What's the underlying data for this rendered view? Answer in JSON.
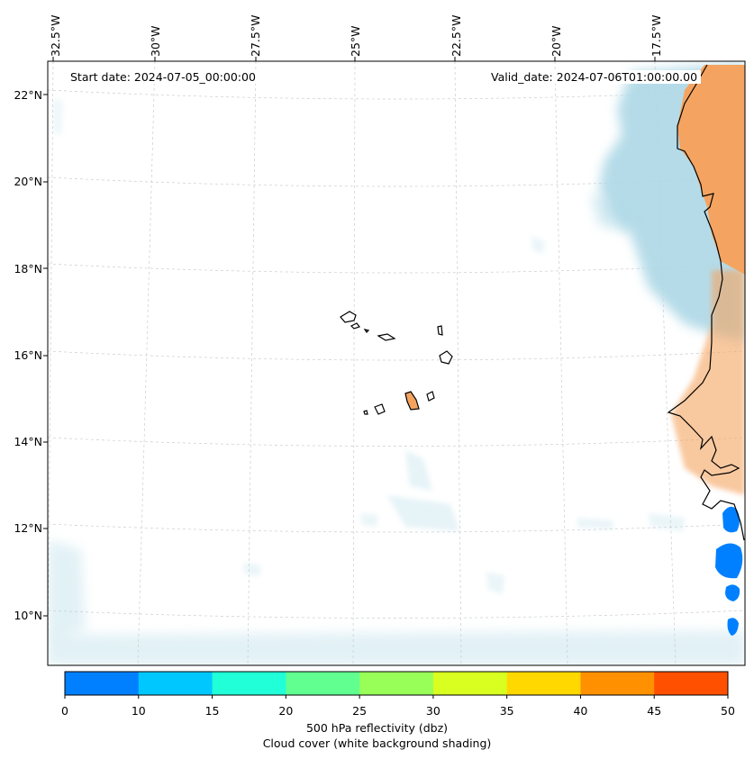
{
  "map": {
    "start_date": "Start date: 2024-07-05_00:00:00",
    "valid_date": "Valid_date: 2024-07-06T01:00:00.00",
    "lon_labels": [
      "32.5°W",
      "30°W",
      "27.5°W",
      "25°W",
      "22.5°W",
      "20°W",
      "17.5°W"
    ],
    "lat_labels": [
      "22°N",
      "20°N",
      "18°N",
      "16°N",
      "14°N",
      "12°N",
      "10°N"
    ],
    "islands": "Cape Verde Islands",
    "coastline": "West African coast (Mauritania, Senegal, Gambia, Guinea-Bissau)"
  },
  "colorbar": {
    "ticks": [
      "0",
      "10",
      "15",
      "20",
      "25",
      "30",
      "35",
      "40",
      "45",
      "50"
    ],
    "colors": [
      "#0080ff",
      "#00c8ff",
      "#20ffd8",
      "#60ff90",
      "#98ff58",
      "#d8ff20",
      "#ffd800",
      "#ff9000",
      "#ff5000"
    ],
    "label_line1": "500 hPa reflectivity (dbz)",
    "label_line2": "Cloud cover (white background shading)"
  },
  "colors": {
    "cloud": "#add8e6",
    "land_reflect": "#f4a460",
    "reflect_blue": "#0080ff"
  }
}
